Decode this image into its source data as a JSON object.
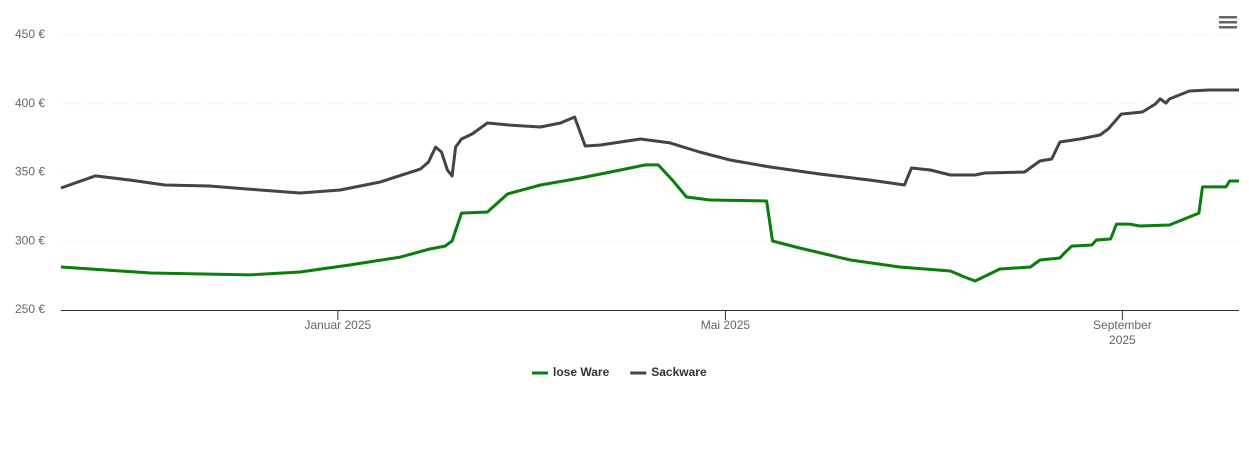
{
  "chart_data": {
    "type": "line",
    "xlim": [
      2024.765,
      2025.765
    ],
    "xticks": [
      {
        "value": 2025.0,
        "label": "Januar 2025"
      },
      {
        "value": 2025.329,
        "label": "Mai 2025"
      },
      {
        "value": 2025.666,
        "label": "September 2025"
      }
    ],
    "ylim": [
      250,
      450
    ],
    "yticks": [
      {
        "value": 250,
        "label": "250 €"
      },
      {
        "value": 300,
        "label": "300 €"
      },
      {
        "value": 350,
        "label": "350 €"
      },
      {
        "value": 400,
        "label": "400 €"
      },
      {
        "value": 450,
        "label": "450 €"
      }
    ],
    "grid": true,
    "legend": "bottom",
    "series": [
      {
        "name": "lose Ware",
        "color": "#0b7d0b",
        "x": [
          2024.765,
          2024.841,
          2024.925,
          2024.968,
          2025.01,
          2025.053,
          2025.078,
          2025.091,
          2025.097,
          2025.105,
          2025.127,
          2025.144,
          2025.172,
          2025.206,
          2025.24,
          2025.261,
          2025.272,
          2025.284,
          2025.296,
          2025.316,
          2025.364,
          2025.369,
          2025.392,
          2025.435,
          2025.477,
          2025.52,
          2025.532,
          2025.541,
          2025.562,
          2025.588,
          2025.596,
          2025.613,
          2025.616,
          2025.623,
          2025.64,
          2025.644,
          2025.656,
          2025.661,
          2025.672,
          2025.681,
          2025.706,
          2025.731,
          2025.734,
          2025.754,
          2025.757,
          2025.765
        ],
        "values": [
          281.3,
          276.9,
          275.5,
          277.6,
          282.7,
          288.5,
          294.4,
          296.5,
          300.2,
          320.5,
          321.3,
          334.4,
          340.9,
          346,
          351.8,
          355.5,
          355.5,
          344.5,
          332.2,
          330,
          329.3,
          300.2,
          295.1,
          286.4,
          281.3,
          278.4,
          274,
          271.1,
          279.8,
          281.3,
          286.4,
          287.8,
          290.7,
          296.5,
          297.3,
          300.9,
          301.6,
          312.5,
          312.5,
          311.1,
          311.8,
          320.5,
          339.5,
          339.5,
          343.8,
          343.8
        ]
      },
      {
        "name": "Sackware",
        "color": "#434348",
        "x": [
          2024.765,
          2024.794,
          2024.824,
          2024.853,
          2024.891,
          2024.934,
          2024.968,
          2025.002,
          2025.036,
          2025.07,
          2025.077,
          2025.083,
          2025.088,
          2025.093,
          2025.097,
          2025.1,
          2025.105,
          2025.114,
          2025.127,
          2025.146,
          2025.172,
          2025.189,
          2025.201,
          2025.21,
          2025.223,
          2025.257,
          2025.282,
          2025.307,
          2025.333,
          2025.367,
          2025.409,
          2025.452,
          2025.481,
          2025.487,
          2025.503,
          2025.52,
          2025.541,
          2025.549,
          2025.583,
          2025.596,
          2025.606,
          2025.613,
          2025.63,
          2025.647,
          2025.654,
          2025.665,
          2025.683,
          2025.694,
          2025.698,
          2025.703,
          2025.706,
          2025.723,
          2025.74,
          2025.765
        ],
        "values": [
          338.7,
          347.5,
          344.5,
          340.9,
          340.2,
          337.3,
          335.1,
          337.3,
          343.1,
          352.5,
          357.6,
          368.5,
          364.9,
          351.8,
          347.5,
          368.5,
          374.4,
          378,
          386,
          384.5,
          383.1,
          386,
          390.4,
          369.3,
          370,
          374.4,
          371.5,
          364.9,
          359.1,
          354,
          348.9,
          344.5,
          340.9,
          353.3,
          351.8,
          348.2,
          348.2,
          349.6,
          350.4,
          358.4,
          359.8,
          372.2,
          374.4,
          377.3,
          381.6,
          392.5,
          394,
          399.8,
          403.5,
          400.5,
          403.5,
          409.3,
          410,
          410
        ]
      }
    ]
  }
}
